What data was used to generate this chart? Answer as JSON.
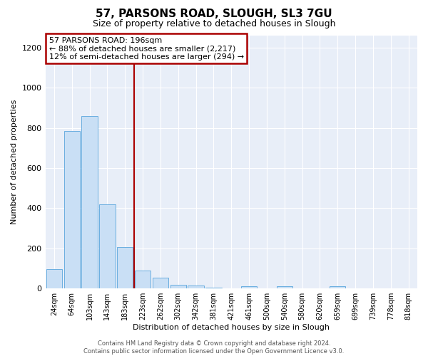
{
  "title": "57, PARSONS ROAD, SLOUGH, SL3 7GU",
  "subtitle": "Size of property relative to detached houses in Slough",
  "xlabel": "Distribution of detached houses by size in Slough",
  "ylabel": "Number of detached properties",
  "bin_labels": [
    "24sqm",
    "64sqm",
    "103sqm",
    "143sqm",
    "183sqm",
    "223sqm",
    "262sqm",
    "302sqm",
    "342sqm",
    "381sqm",
    "421sqm",
    "461sqm",
    "500sqm",
    "540sqm",
    "580sqm",
    "620sqm",
    "659sqm",
    "699sqm",
    "739sqm",
    "778sqm",
    "818sqm"
  ],
  "bar_values": [
    95,
    785,
    860,
    420,
    205,
    90,
    55,
    20,
    15,
    5,
    0,
    10,
    0,
    10,
    0,
    0,
    10,
    0,
    0,
    0,
    0
  ],
  "bar_color": "#c9dff5",
  "bar_edge_color": "#6aaee0",
  "ylim": [
    0,
    1260
  ],
  "yticks": [
    0,
    200,
    400,
    600,
    800,
    1000,
    1200
  ],
  "vline_bin_index": 4,
  "vline_color": "#aa0000",
  "annotation_title": "57 PARSONS ROAD: 196sqm",
  "annotation_line1": "← 88% of detached houses are smaller (2,217)",
  "annotation_line2": "12% of semi-detached houses are larger (294) →",
  "annotation_box_edge_color": "#aa0000",
  "annotation_box_face_color": "#ffffff",
  "footer_line1": "Contains HM Land Registry data © Crown copyright and database right 2024.",
  "footer_line2": "Contains public sector information licensed under the Open Government Licence v3.0.",
  "fig_bg_color": "#ffffff",
  "plot_bg_color": "#e8eef8",
  "grid_color": "#ffffff",
  "title_fontsize": 11,
  "subtitle_fontsize": 9,
  "xlabel_fontsize": 8,
  "ylabel_fontsize": 8,
  "tick_fontsize": 7,
  "annotation_fontsize": 8,
  "footer_fontsize": 6
}
